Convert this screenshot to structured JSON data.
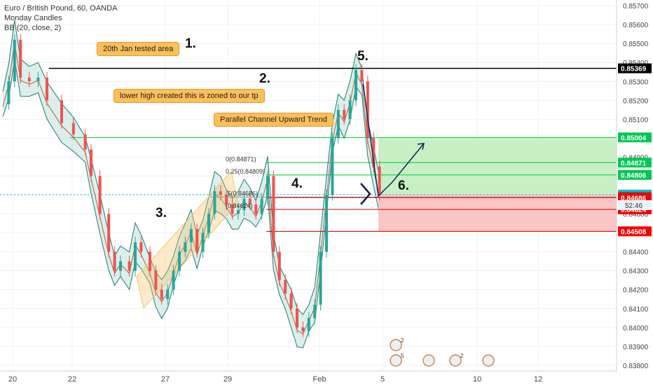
{
  "header": {
    "symbol_line": "Euro / British Pound, 60, OANDA",
    "indicator_1": "Monday Candles",
    "indicator_2": "BB (20, close, 2)"
  },
  "annotations": {
    "callout_1": "20th Jan tested area",
    "callout_2": "lower high created this is zoned to our tp",
    "callout_3": "Parallel Channel Upward Trend",
    "marker_1": "1.",
    "marker_2": "2.",
    "marker_3": "3.",
    "marker_4": "4.",
    "marker_5": "5.",
    "marker_6": "6."
  },
  "colors": {
    "up_candle": "#26a69a",
    "down_candle": "#ef5350",
    "bb_band": "#1e7a72",
    "bb_fill": "#b7e0d8",
    "bb_basis": "#b45f3a",
    "fib_line": "#00cc33",
    "resistance": "#000000",
    "target_zone": "#c9efc4",
    "stop_zone": "#fcc5c5",
    "channel": "#f6c36a",
    "price_label_green": "#00c853",
    "price_label_red": "#f50000",
    "price_label_current": "#00bcd4"
  },
  "chart_data": {
    "type": "candlestick",
    "title": "Euro / British Pound, 60, OANDA",
    "x_tick_labels": [
      "20",
      "22",
      "27",
      "29",
      "Feb",
      "5",
      "10",
      "12"
    ],
    "y_tick_labels": [
      "0.85700",
      "0.85600",
      "0.85500",
      "0.85400",
      "0.85300",
      "0.85200",
      "0.85100",
      "0.85000",
      "0.84900",
      "0.84800",
      "0.84700",
      "0.84600",
      "0.84500",
      "0.84400",
      "0.84300",
      "0.84200",
      "0.84100",
      "0.84000",
      "0.83900",
      "0.83800"
    ],
    "ylim": [
      0.8377,
      0.8573
    ],
    "price_path": [
      [
        0,
        0.8518
      ],
      [
        0.02,
        0.853
      ],
      [
        0.04,
        0.8552
      ],
      [
        0.06,
        0.8532
      ],
      [
        0.09,
        0.853
      ],
      [
        0.12,
        0.8532
      ],
      [
        0.15,
        0.852
      ],
      [
        0.2,
        0.8508
      ],
      [
        0.24,
        0.8502
      ],
      [
        0.28,
        0.8494
      ],
      [
        0.3,
        0.848
      ],
      [
        0.33,
        0.846
      ],
      [
        0.36,
        0.844
      ],
      [
        0.38,
        0.843
      ],
      [
        0.4,
        0.8435
      ],
      [
        0.43,
        0.843
      ],
      [
        0.45,
        0.8445
      ],
      [
        0.47,
        0.844
      ],
      [
        0.5,
        0.843
      ],
      [
        0.52,
        0.842
      ],
      [
        0.54,
        0.8415
      ],
      [
        0.56,
        0.842
      ],
      [
        0.58,
        0.843
      ],
      [
        0.6,
        0.844
      ],
      [
        0.62,
        0.8445
      ],
      [
        0.64,
        0.8452
      ],
      [
        0.66,
        0.844
      ],
      [
        0.68,
        0.845
      ],
      [
        0.7,
        0.846
      ],
      [
        0.72,
        0.8472
      ],
      [
        0.74,
        0.847
      ],
      [
        0.76,
        0.8465
      ],
      [
        0.78,
        0.846
      ],
      [
        0.8,
        0.8462
      ],
      [
        0.82,
        0.8468
      ],
      [
        0.84,
        0.8465
      ],
      [
        0.86,
        0.846
      ],
      [
        0.88,
        0.8468
      ],
      [
        0.9,
        0.848
      ],
      [
        0.92,
        0.844
      ],
      [
        0.94,
        0.8425
      ],
      [
        0.96,
        0.8418
      ],
      [
        0.98,
        0.841
      ],
      [
        1.0,
        0.84
      ],
      [
        1.02,
        0.8398
      ],
      [
        1.04,
        0.8405
      ],
      [
        1.06,
        0.8412
      ],
      [
        1.08,
        0.844
      ],
      [
        1.1,
        0.847
      ],
      [
        1.12,
        0.85
      ],
      [
        1.14,
        0.8515
      ],
      [
        1.16,
        0.851
      ],
      [
        1.18,
        0.852
      ],
      [
        1.2,
        0.8536
      ],
      [
        1.22,
        0.853
      ],
      [
        1.24,
        0.85
      ],
      [
        1.26,
        0.8485
      ],
      [
        1.28,
        0.847
      ]
    ],
    "levels": [
      {
        "label": "0.85369",
        "value": 0.85369,
        "kind": "resistance"
      },
      {
        "label": "0.85004",
        "value": 0.85004,
        "kind": "green"
      },
      {
        "label": "0.84871",
        "value": 0.84871,
        "kind": "green"
      },
      {
        "label": "0.84806",
        "value": 0.84806,
        "kind": "green"
      },
      {
        "label": "0.84702",
        "value": 0.84702,
        "kind": "current"
      },
      {
        "label": "0.84689",
        "value": 0.84689,
        "kind": "dark"
      },
      {
        "label": "0.84686",
        "value": 0.84686,
        "kind": "red"
      },
      {
        "label": "0.84624",
        "value": 0.84624,
        "kind": "red"
      },
      {
        "label": "0.84508",
        "value": 0.84508,
        "kind": "red"
      }
    ],
    "countdown_label": "52:46",
    "fib_labels": [
      "0(0.84871)",
      "0.25(0.84809)",
      ".5(0.84686)",
      "(0.84624)"
    ],
    "event_counts": [
      "2",
      "5",
      "2"
    ]
  }
}
